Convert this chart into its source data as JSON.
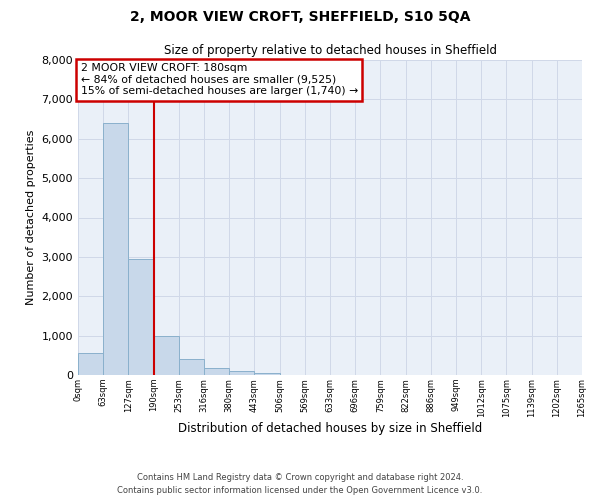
{
  "title1": "2, MOOR VIEW CROFT, SHEFFIELD, S10 5QA",
  "title2": "Size of property relative to detached houses in Sheffield",
  "xlabel": "Distribution of detached houses by size in Sheffield",
  "ylabel": "Number of detached properties",
  "bar_values": [
    550,
    6400,
    2950,
    1000,
    400,
    175,
    100,
    60,
    5,
    2,
    1,
    0,
    0,
    0,
    0,
    0,
    0,
    0,
    0,
    0
  ],
  "bar_color": "#c8d8ea",
  "bar_edge_color": "#8ab0cc",
  "categories": [
    "0sqm",
    "63sqm",
    "127sqm",
    "190sqm",
    "253sqm",
    "316sqm",
    "380sqm",
    "443sqm",
    "506sqm",
    "569sqm",
    "633sqm",
    "696sqm",
    "759sqm",
    "822sqm",
    "886sqm",
    "949sqm",
    "1012sqm",
    "1075sqm",
    "1139sqm",
    "1202sqm",
    "1265sqm"
  ],
  "ylim": [
    0,
    8000
  ],
  "yticks": [
    0,
    1000,
    2000,
    3000,
    4000,
    5000,
    6000,
    7000,
    8000
  ],
  "annotation_line1": "2 MOOR VIEW CROFT: 180sqm",
  "annotation_line2": "← 84% of detached houses are smaller (9,525)",
  "annotation_line3": "15% of semi-detached houses are larger (1,740) →",
  "annotation_box_color": "#ffffff",
  "annotation_box_edge": "#cc0000",
  "red_line_color": "#cc0000",
  "grid_color": "#d0d8e8",
  "background_color": "#eaf0f8",
  "footer1": "Contains HM Land Registry data © Crown copyright and database right 2024.",
  "footer2": "Contains public sector information licensed under the Open Government Licence v3.0."
}
